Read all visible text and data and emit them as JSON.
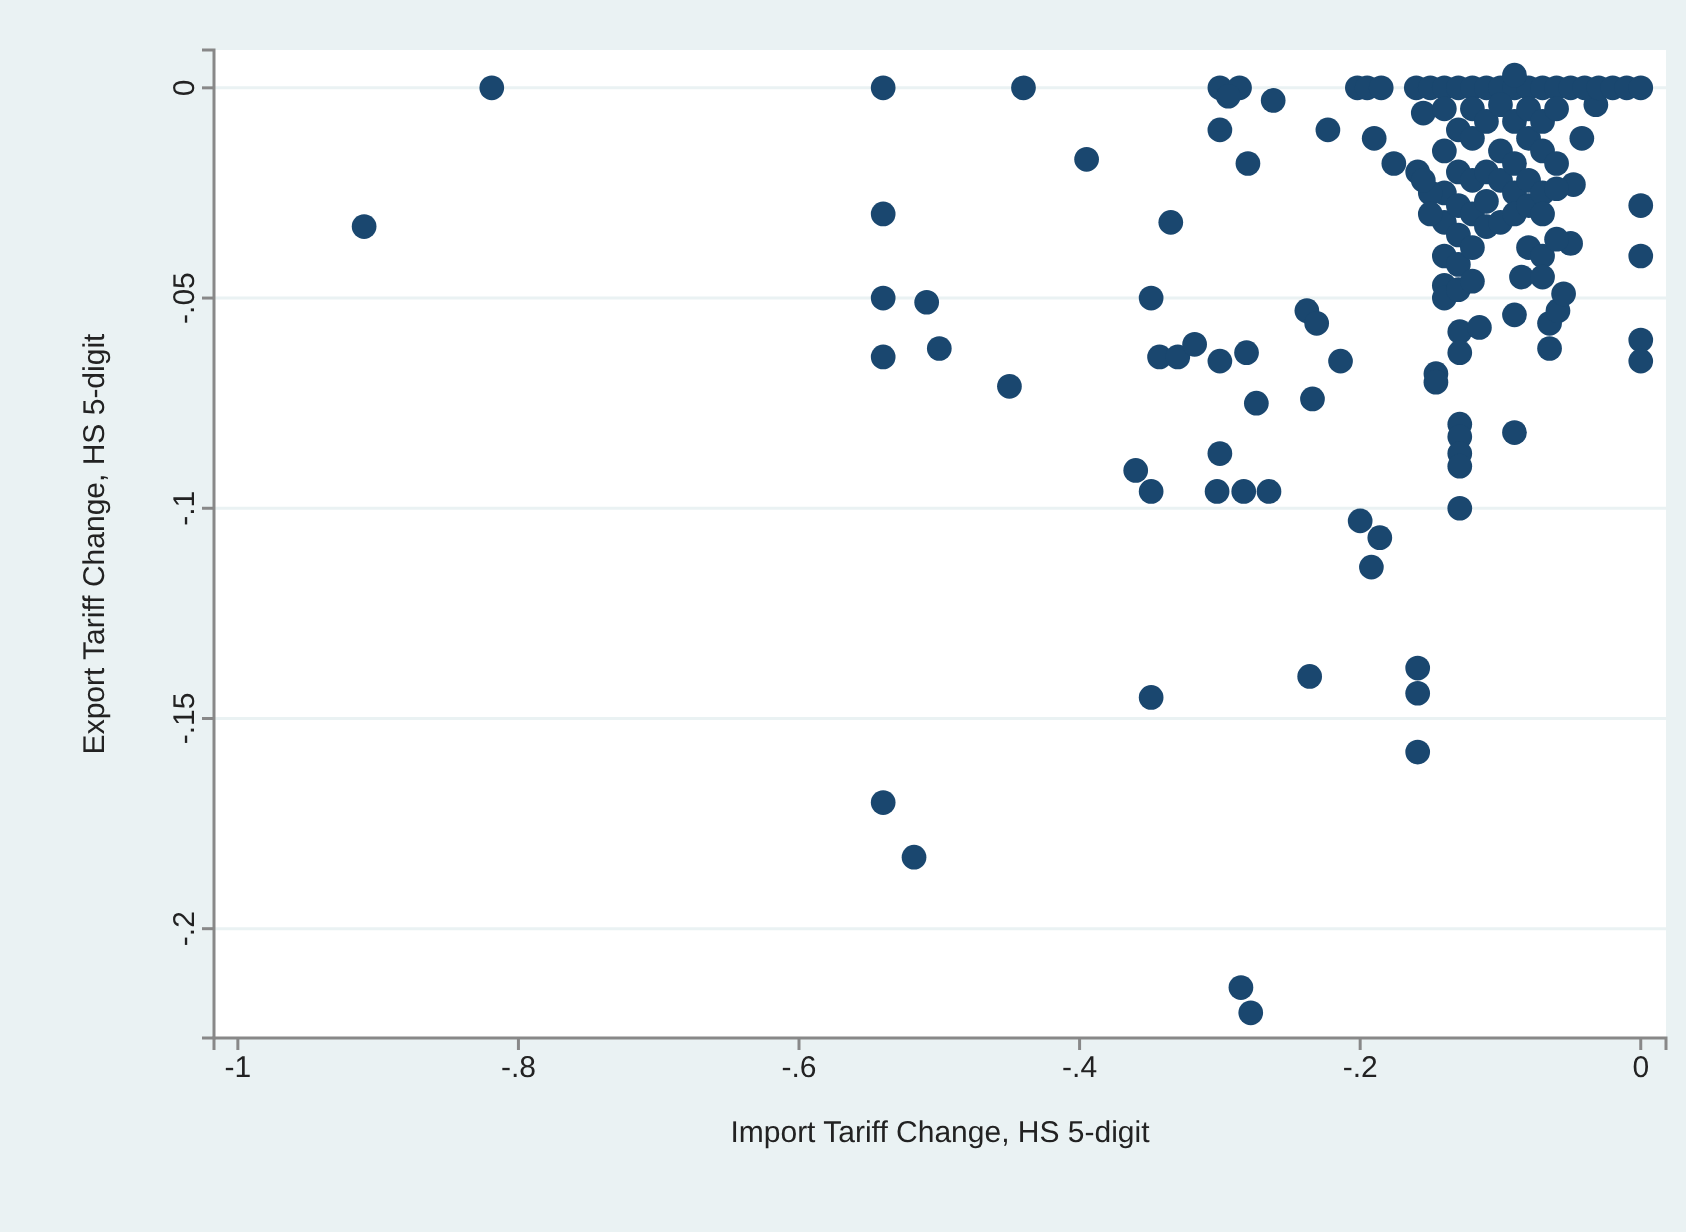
{
  "chart_data": {
    "type": "scatter",
    "xlabel": "Import Tariff Change, HS 5-digit",
    "ylabel": "Export Tariff Change, HS 5-digit",
    "xlim": [
      -1.017,
      0.018
    ],
    "ylim": [
      -0.226,
      0.009
    ],
    "xticks": [
      {
        "value": -1,
        "label": "-1"
      },
      {
        "value": -0.8,
        "label": "-.8"
      },
      {
        "value": -0.6,
        "label": "-.6"
      },
      {
        "value": -0.4,
        "label": "-.4"
      },
      {
        "value": -0.2,
        "label": "-.2"
      },
      {
        "value": 0,
        "label": "0"
      }
    ],
    "yticks": [
      {
        "value": -0.2,
        "label": "-.2"
      },
      {
        "value": -0.15,
        "label": "-.15"
      },
      {
        "value": -0.1,
        "label": "-.1"
      },
      {
        "value": -0.05,
        "label": "-.05"
      },
      {
        "value": 0,
        "label": "0"
      }
    ],
    "grid": "y",
    "marker": "circle",
    "series": [
      {
        "color": "#1a476f",
        "x": [
          -0.819,
          -0.91,
          -0.54,
          -0.44,
          -0.54,
          -0.54,
          -0.54,
          -0.509,
          -0.5,
          -0.45,
          -0.395,
          -0.335,
          -0.349,
          -0.343,
          -0.33,
          -0.318,
          -0.36,
          -0.349,
          -0.349,
          -0.54,
          -0.518,
          -0.285,
          -0.278,
          -0.3,
          -0.286,
          -0.294,
          -0.262,
          -0.3,
          -0.28,
          -0.3,
          -0.281,
          -0.274,
          -0.3,
          -0.302,
          -0.283,
          -0.265,
          -0.223,
          -0.238,
          -0.231,
          -0.214,
          -0.234,
          -0.236,
          -0.2,
          -0.186,
          -0.192,
          -0.159,
          -0.159,
          -0.159,
          -0.202,
          -0.195,
          -0.185,
          -0.19,
          -0.176,
          -0.159,
          -0.155,
          -0.146,
          -0.146,
          -0.129,
          -0.129,
          -0.129,
          -0.129,
          -0.129,
          -0.129,
          -0.129,
          -0.115,
          -0.09,
          -0.09,
          -0.085,
          -0.065,
          -0.065,
          -0.059,
          -0.055,
          -0.05,
          -0.042,
          -0.048,
          -0.032,
          0,
          0,
          0,
          0,
          -0.16,
          -0.15,
          -0.14,
          -0.13,
          -0.12,
          -0.11,
          -0.1,
          -0.09,
          -0.08,
          -0.07,
          -0.06,
          -0.05,
          -0.04,
          -0.03,
          -0.02,
          -0.01,
          0,
          -0.14,
          -0.14,
          -0.14,
          -0.14,
          -0.14,
          -0.14,
          -0.14,
          -0.13,
          -0.13,
          -0.13,
          -0.13,
          -0.13,
          -0.13,
          -0.12,
          -0.12,
          -0.12,
          -0.12,
          -0.12,
          -0.12,
          -0.11,
          -0.11,
          -0.11,
          -0.11,
          -0.1,
          -0.1,
          -0.1,
          -0.1,
          -0.09,
          -0.09,
          -0.09,
          -0.09,
          -0.09,
          -0.08,
          -0.08,
          -0.08,
          -0.08,
          -0.08,
          -0.07,
          -0.07,
          -0.07,
          -0.07,
          -0.07,
          -0.07,
          -0.06,
          -0.06,
          -0.06,
          -0.06,
          -0.15,
          -0.15,
          -0.155
        ],
        "values": [
          0,
          -0.033,
          0,
          0,
          -0.03,
          -0.05,
          -0.064,
          -0.051,
          -0.062,
          -0.071,
          -0.017,
          -0.032,
          -0.05,
          -0.064,
          -0.064,
          -0.061,
          -0.091,
          -0.096,
          -0.145,
          -0.17,
          -0.183,
          -0.214,
          -0.22,
          0,
          0,
          -0.002,
          -0.003,
          -0.01,
          -0.018,
          -0.065,
          -0.063,
          -0.075,
          -0.087,
          -0.096,
          -0.096,
          -0.096,
          -0.01,
          -0.053,
          -0.056,
          -0.065,
          -0.074,
          -0.14,
          -0.103,
          -0.107,
          -0.114,
          -0.138,
          -0.144,
          -0.158,
          0,
          0,
          0,
          -0.012,
          -0.018,
          -0.02,
          -0.006,
          -0.068,
          -0.07,
          -0.08,
          -0.083,
          -0.087,
          -0.09,
          -0.1,
          -0.058,
          -0.063,
          -0.057,
          -0.082,
          -0.054,
          -0.045,
          -0.062,
          -0.056,
          -0.053,
          -0.049,
          -0.037,
          -0.012,
          -0.023,
          -0.004,
          -0.028,
          -0.04,
          -0.06,
          -0.065,
          0,
          0,
          0,
          0,
          0,
          0,
          0,
          0,
          0,
          0,
          0,
          0,
          0,
          0,
          0,
          0,
          0,
          -0.005,
          -0.015,
          -0.025,
          -0.032,
          -0.04,
          -0.047,
          -0.05,
          -0.01,
          -0.02,
          -0.028,
          -0.035,
          -0.042,
          -0.048,
          -0.005,
          -0.012,
          -0.022,
          -0.03,
          -0.038,
          -0.046,
          -0.008,
          -0.02,
          -0.027,
          -0.033,
          -0.004,
          -0.015,
          -0.022,
          -0.032,
          0.003,
          -0.008,
          -0.018,
          -0.025,
          -0.03,
          -0.005,
          -0.012,
          -0.022,
          -0.028,
          -0.038,
          -0.008,
          -0.015,
          -0.025,
          -0.03,
          -0.04,
          -0.045,
          -0.005,
          -0.018,
          -0.024,
          -0.036,
          -0.025,
          -0.03,
          -0.022
        ]
      }
    ]
  }
}
